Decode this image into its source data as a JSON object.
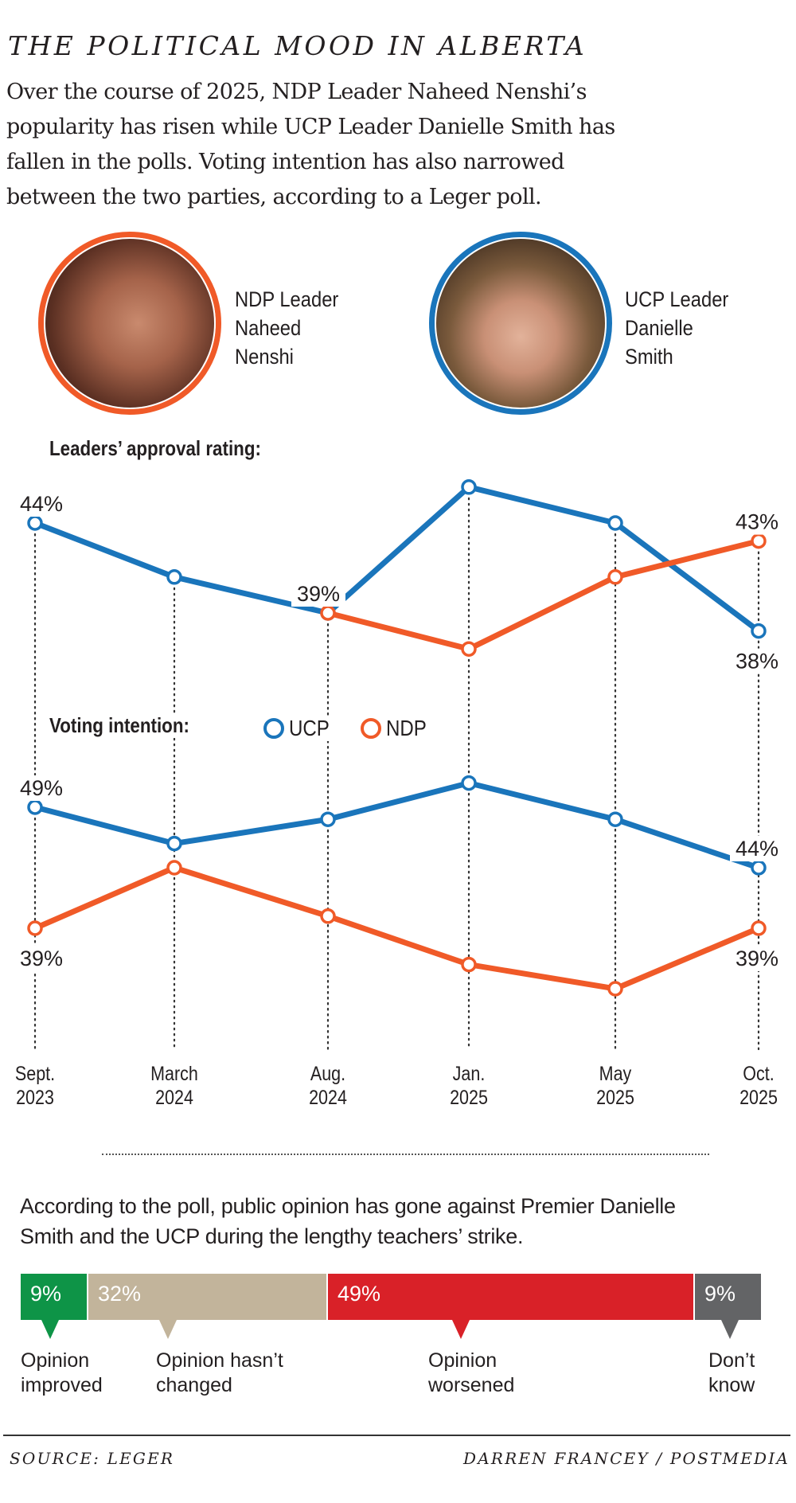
{
  "header": {
    "title": "THE POLITICAL MOOD IN ALBERTA",
    "dek_lines": [
      "Over the course of 2025, NDP Leader Naheed Nenshi’s",
      "popularity has risen while UCP Leader Danielle Smith has",
      "fallen in the polls. Voting intention has also narrowed",
      "between the two parties, according to a Leger poll."
    ]
  },
  "leaders": [
    {
      "id": "ndp",
      "lines": [
        "NDP Leader",
        "Naheed",
        "Nenshi"
      ],
      "ring_color": "#f05a28",
      "photo": "portrait-photo"
    },
    {
      "id": "ucp",
      "lines": [
        "UCP Leader",
        "Danielle",
        "Smith"
      ],
      "ring_color": "#1a75bb",
      "photo": "portrait-photo"
    }
  ],
  "colors": {
    "ucp": "#1a75bb",
    "ndp": "#f05a28",
    "improved": "#0e9447",
    "unchanged": "#c2b49b",
    "worsened": "#d92128",
    "dont_know": "#636466"
  },
  "chart_data": [
    {
      "type": "line",
      "title": "Leaders’ approval rating:",
      "categories": [
        "Sept. 2023",
        "March 2024",
        "Aug. 2024",
        "Jan. 2025",
        "May 2025",
        "Oct. 2025"
      ],
      "series": [
        {
          "name": "Danielle Smith (UCP)",
          "color_key": "ucp",
          "values": [
            44,
            41,
            39,
            46,
            44,
            38
          ]
        },
        {
          "name": "Naheed Nenshi (NDP)",
          "color_key": "ndp",
          "values": [
            null,
            null,
            39,
            37,
            41,
            43
          ]
        }
      ],
      "data_labels": [
        {
          "series": 0,
          "index": 0,
          "text": "44%",
          "position": "above"
        },
        {
          "series": 0,
          "index": 2,
          "text": "39%",
          "position": "above"
        },
        {
          "series": 1,
          "index": 5,
          "text": "43%",
          "position": "above"
        },
        {
          "series": 0,
          "index": 5,
          "text": "38%",
          "position": "below"
        }
      ],
      "unit": "%",
      "grid": "vertical dotted drop lines",
      "legend": "none"
    },
    {
      "type": "line",
      "title": "Voting intention:",
      "categories": [
        "Sept. 2023",
        "March 2024",
        "Aug. 2024",
        "Jan. 2025",
        "May 2025",
        "Oct. 2025"
      ],
      "series": [
        {
          "name": "UCP",
          "color_key": "ucp",
          "values": [
            49,
            46,
            48,
            51,
            48,
            44
          ]
        },
        {
          "name": "NDP",
          "color_key": "ndp",
          "values": [
            39,
            44,
            40,
            36,
            34,
            39
          ]
        }
      ],
      "data_labels": [
        {
          "series": 0,
          "index": 0,
          "text": "49%",
          "position": "above"
        },
        {
          "series": 1,
          "index": 0,
          "text": "39%",
          "position": "below"
        },
        {
          "series": 0,
          "index": 5,
          "text": "44%",
          "position": "above"
        },
        {
          "series": 1,
          "index": 5,
          "text": "39%",
          "position": "below"
        }
      ],
      "unit": "%",
      "legend": "top-center",
      "legend_entries": [
        "UCP",
        "NDP"
      ]
    },
    {
      "type": "bar",
      "orientation": "horizontal-stacked",
      "title": "According to the poll, public opinion has gone against Premier Danielle Smith and the UCP during the lengthy teachers’ strike.",
      "categories": [
        "Opinion improved",
        "Opinion hasn’t changed",
        "Opinion worsened",
        "Don’t know"
      ],
      "values": [
        9,
        32,
        49,
        9
      ],
      "labels": [
        "9%",
        "32%",
        "49%",
        "9%"
      ]
    }
  ],
  "x_axis_labels": [
    [
      "Sept.",
      "2023"
    ],
    [
      "March",
      "2024"
    ],
    [
      "Aug.",
      "2024"
    ],
    [
      "Jan.",
      "2025"
    ],
    [
      "May",
      "2025"
    ],
    [
      "Oct.",
      "2025"
    ]
  ],
  "strike": {
    "text_lines": [
      "According to the poll, public opinion has gone against Premier Danielle",
      "Smith and the UCP during the lengthy teachers’ strike."
    ],
    "segments": [
      {
        "value": 9,
        "label": "9%",
        "caption": [
          "Opinion",
          "improved"
        ],
        "color_key": "improved"
      },
      {
        "value": 32,
        "label": "32%",
        "caption": [
          "Opinion hasn’t",
          "changed"
        ],
        "color_key": "unchanged"
      },
      {
        "value": 49,
        "label": "49%",
        "caption": [
          "Opinion",
          "worsened"
        ],
        "color_key": "worsened"
      },
      {
        "value": 9,
        "label": "9%",
        "caption": [
          "Don’t",
          "know"
        ],
        "color_key": "dont_know"
      }
    ]
  },
  "footer": {
    "source": "SOURCE: LEGER",
    "credit": "DARREN FRANCEY / POSTMEDIA"
  }
}
